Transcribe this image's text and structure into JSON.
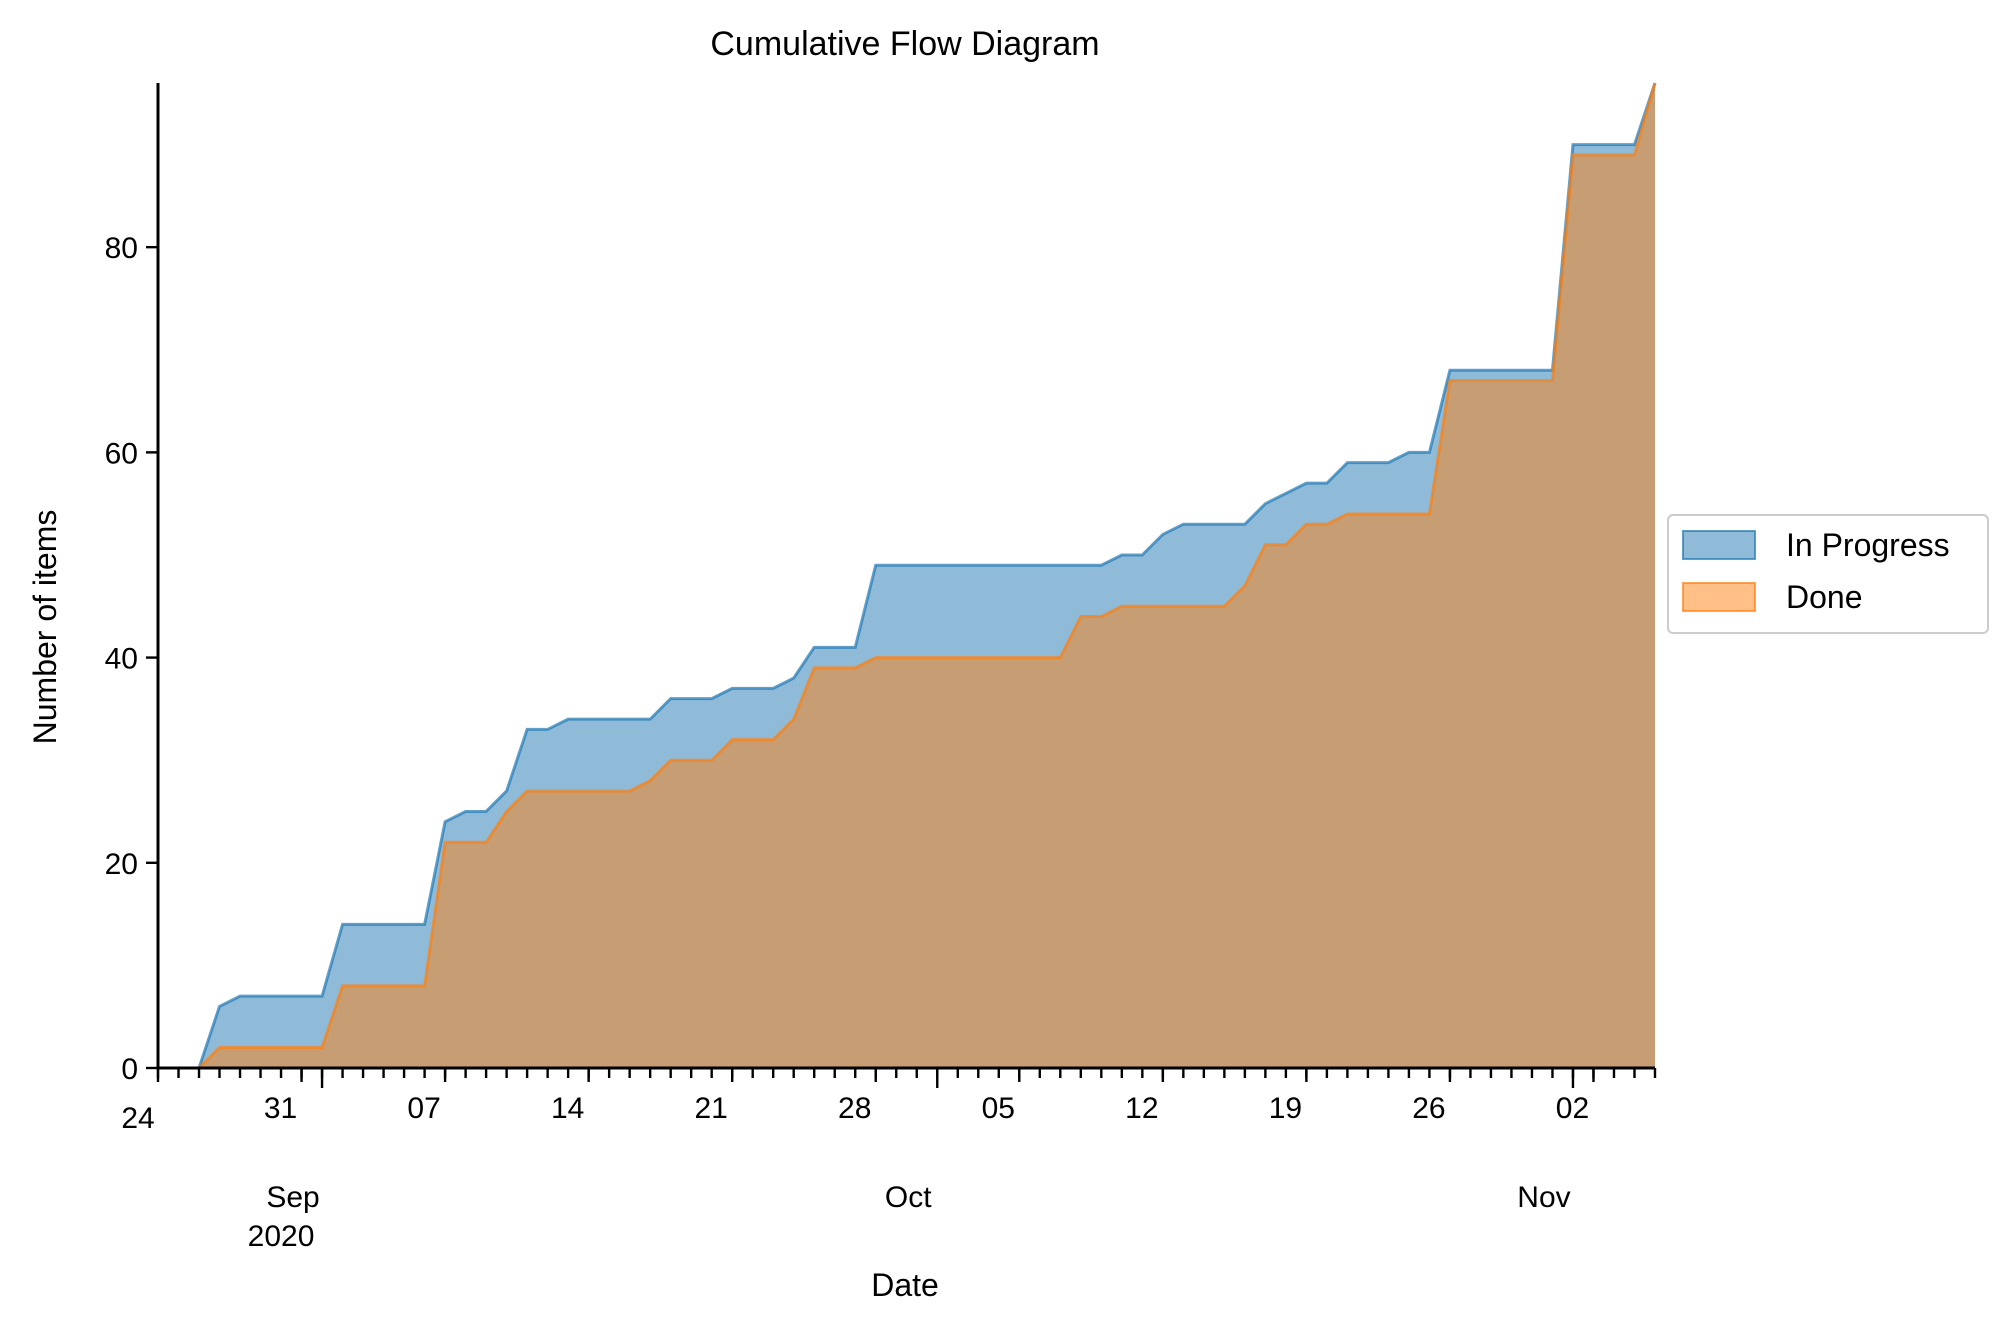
{
  "chart_data": {
    "type": "area",
    "title": "Cumulative Flow Diagram",
    "xlabel": "Date",
    "ylabel": "Number of items",
    "x_range": [
      "2020-08-24",
      "2020-11-05"
    ],
    "ylim": [
      0,
      96
    ],
    "y_ticks": [
      0,
      20,
      40,
      60,
      80
    ],
    "x_minor_tick_dates_note": "daily",
    "x_major_ticks": [
      {
        "date": "2020-08-24",
        "label": "24"
      },
      {
        "date": "2020-08-31",
        "label": "31"
      },
      {
        "date": "2020-09-07",
        "label": "07"
      },
      {
        "date": "2020-09-14",
        "label": "14"
      },
      {
        "date": "2020-09-21",
        "label": "21"
      },
      {
        "date": "2020-09-28",
        "label": "28"
      },
      {
        "date": "2020-10-05",
        "label": "05"
      },
      {
        "date": "2020-10-12",
        "label": "12"
      },
      {
        "date": "2020-10-19",
        "label": "19"
      },
      {
        "date": "2020-10-26",
        "label": "26"
      },
      {
        "date": "2020-11-02",
        "label": "02"
      }
    ],
    "month_labels": [
      {
        "date": "2020-09-01",
        "label": "Sep",
        "year": "2020"
      },
      {
        "date": "2020-10-01",
        "label": "Oct",
        "year": ""
      },
      {
        "date": "2020-11-01",
        "label": "Nov",
        "year": ""
      }
    ],
    "stacking": "cumulative (In Progress curve drawn behind Done)",
    "legend_position": "center-right, outside plot",
    "series": [
      {
        "name": "In Progress",
        "color": "#1f77b4",
        "points": [
          [
            "2020-08-26",
            0
          ],
          [
            "2020-08-27",
            6
          ],
          [
            "2020-08-28",
            7
          ],
          [
            "2020-09-01",
            7
          ],
          [
            "2020-09-02",
            14
          ],
          [
            "2020-09-06",
            14
          ],
          [
            "2020-09-07",
            24
          ],
          [
            "2020-09-08",
            25
          ],
          [
            "2020-09-09",
            25
          ],
          [
            "2020-09-10",
            27
          ],
          [
            "2020-09-11",
            33
          ],
          [
            "2020-09-12",
            33
          ],
          [
            "2020-09-13",
            34
          ],
          [
            "2020-09-17",
            34
          ],
          [
            "2020-09-18",
            36
          ],
          [
            "2020-09-20",
            36
          ],
          [
            "2020-09-21",
            37
          ],
          [
            "2020-09-23",
            37
          ],
          [
            "2020-09-24",
            38
          ],
          [
            "2020-09-25",
            41
          ],
          [
            "2020-09-27",
            41
          ],
          [
            "2020-09-28",
            49
          ],
          [
            "2020-10-09",
            49
          ],
          [
            "2020-10-10",
            50
          ],
          [
            "2020-10-11",
            50
          ],
          [
            "2020-10-12",
            52
          ],
          [
            "2020-10-13",
            53
          ],
          [
            "2020-10-16",
            53
          ],
          [
            "2020-10-17",
            55
          ],
          [
            "2020-10-18",
            56
          ],
          [
            "2020-10-19",
            57
          ],
          [
            "2020-10-20",
            57
          ],
          [
            "2020-10-21",
            59
          ],
          [
            "2020-10-23",
            59
          ],
          [
            "2020-10-24",
            60
          ],
          [
            "2020-10-25",
            60
          ],
          [
            "2020-10-26",
            68
          ],
          [
            "2020-10-31",
            68
          ],
          [
            "2020-11-01",
            90
          ],
          [
            "2020-11-04",
            90
          ],
          [
            "2020-11-05",
            96
          ]
        ]
      },
      {
        "name": "Done",
        "color": "#ff7f0e",
        "points": [
          [
            "2020-08-26",
            0
          ],
          [
            "2020-08-27",
            2
          ],
          [
            "2020-09-01",
            2
          ],
          [
            "2020-09-02",
            8
          ],
          [
            "2020-09-06",
            8
          ],
          [
            "2020-09-07",
            22
          ],
          [
            "2020-09-09",
            22
          ],
          [
            "2020-09-10",
            25
          ],
          [
            "2020-09-11",
            27
          ],
          [
            "2020-09-16",
            27
          ],
          [
            "2020-09-17",
            28
          ],
          [
            "2020-09-18",
            30
          ],
          [
            "2020-09-20",
            30
          ],
          [
            "2020-09-21",
            32
          ],
          [
            "2020-09-23",
            32
          ],
          [
            "2020-09-24",
            34
          ],
          [
            "2020-09-25",
            39
          ],
          [
            "2020-09-27",
            39
          ],
          [
            "2020-09-28",
            40
          ],
          [
            "2020-10-07",
            40
          ],
          [
            "2020-10-08",
            44
          ],
          [
            "2020-10-09",
            44
          ],
          [
            "2020-10-10",
            45
          ],
          [
            "2020-10-15",
            45
          ],
          [
            "2020-10-16",
            47
          ],
          [
            "2020-10-17",
            51
          ],
          [
            "2020-10-18",
            51
          ],
          [
            "2020-10-19",
            53
          ],
          [
            "2020-10-20",
            53
          ],
          [
            "2020-10-21",
            54
          ],
          [
            "2020-10-25",
            54
          ],
          [
            "2020-10-26",
            67
          ],
          [
            "2020-10-31",
            67
          ],
          [
            "2020-11-01",
            89
          ],
          [
            "2020-11-04",
            89
          ],
          [
            "2020-11-05",
            96
          ]
        ]
      }
    ]
  }
}
